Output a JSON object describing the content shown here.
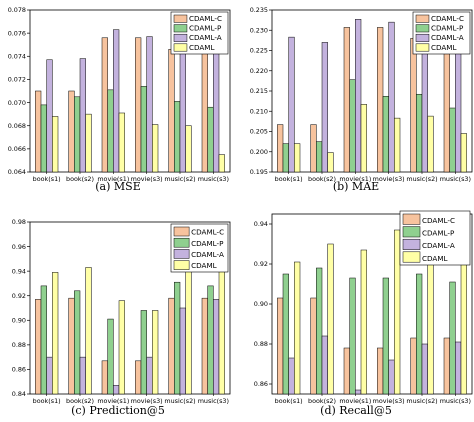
{
  "colors": {
    "CDAML-C": "#f7c39e",
    "CDAML-P": "#8fd08f",
    "CDAML-A": "#c3b2de",
    "CDAML": "#ffffa6",
    "frame": "#000000"
  },
  "chart_data": [
    {
      "type": "bar",
      "caption": "(a)  MSE",
      "categories": [
        "book(s1)",
        "book(s2)",
        "movie(s1)",
        "movie(s3)",
        "music(s2)",
        "music(s3)"
      ],
      "ylim": [
        0.064,
        0.078
      ],
      "yticks": [
        0.064,
        0.066,
        0.068,
        0.07,
        0.072,
        0.074,
        0.076,
        0.078
      ],
      "ytick_labels": [
        "0.064",
        "0.066",
        "0.068",
        "0.070",
        "0.072",
        "0.074",
        "0.076",
        "0.078"
      ],
      "legend_position": "top-right",
      "series": [
        {
          "name": "CDAML-C",
          "values": [
            0.071,
            0.071,
            0.0756,
            0.0756,
            0.0746,
            0.0746
          ]
        },
        {
          "name": "CDAML-P",
          "values": [
            0.0698,
            0.0705,
            0.0711,
            0.0714,
            0.0701,
            0.0696
          ]
        },
        {
          "name": "CDAML-A",
          "values": [
            0.0737,
            0.0738,
            0.0763,
            0.0757,
            0.075,
            0.075
          ]
        },
        {
          "name": "CDAML",
          "values": [
            0.0688,
            0.069,
            0.0691,
            0.0681,
            0.068,
            0.0655
          ]
        }
      ]
    },
    {
      "type": "bar",
      "caption": "(b)  MAE",
      "categories": [
        "book(s1)",
        "book(s2)",
        "movie(s1)",
        "movie(s3)",
        "music(s2)",
        "music(s3)"
      ],
      "ylim": [
        0.195,
        0.235
      ],
      "yticks": [
        0.195,
        0.2,
        0.205,
        0.21,
        0.215,
        0.22,
        0.225,
        0.23,
        0.235
      ],
      "ytick_labels": [
        "0.195",
        "0.200",
        "0.205",
        "0.210",
        "0.215",
        "0.220",
        "0.225",
        "0.230",
        "0.235"
      ],
      "legend_position": "top-right",
      "series": [
        {
          "name": "CDAML-C",
          "values": [
            0.2067,
            0.2067,
            0.2307,
            0.2307,
            0.228,
            0.228
          ]
        },
        {
          "name": "CDAML-P",
          "values": [
            0.202,
            0.2025,
            0.2178,
            0.2137,
            0.2142,
            0.2108
          ]
        },
        {
          "name": "CDAML-A",
          "values": [
            0.2283,
            0.227,
            0.2327,
            0.232,
            0.2293,
            0.2287
          ]
        },
        {
          "name": "CDAML",
          "values": [
            0.202,
            0.1998,
            0.2117,
            0.2083,
            0.2088,
            0.2045
          ]
        }
      ]
    },
    {
      "type": "bar",
      "caption": "(c)  Prediction@5",
      "categories": [
        "book(s1)",
        "book(s2)",
        "movie(s1)",
        "movie(s3)",
        "music(s2)",
        "music(s3)"
      ],
      "ylim": [
        0.84,
        0.98
      ],
      "yticks": [
        0.84,
        0.86,
        0.88,
        0.9,
        0.92,
        0.94,
        0.96,
        0.98
      ],
      "ytick_labels": [
        "0.84",
        "0.86",
        "0.88",
        "0.90",
        "0.92",
        "0.94",
        "0.96",
        "0.98"
      ],
      "legend_position": "top-right",
      "series": [
        {
          "name": "CDAML-C",
          "values": [
            0.917,
            0.918,
            0.867,
            0.867,
            0.918,
            0.918
          ]
        },
        {
          "name": "CDAML-P",
          "values": [
            0.928,
            0.924,
            0.901,
            0.908,
            0.931,
            0.928
          ]
        },
        {
          "name": "CDAML-A",
          "values": [
            0.87,
            0.87,
            0.847,
            0.87,
            0.91,
            0.917
          ]
        },
        {
          "name": "CDAML",
          "values": [
            0.939,
            0.943,
            0.916,
            0.908,
            0.954,
            0.944
          ]
        }
      ]
    },
    {
      "type": "bar",
      "caption": "(d)  Recall@5",
      "categories": [
        "book(s1)",
        "book(s2)",
        "movie(s1)",
        "movie(s3)",
        "music(s2)",
        "music(s3)"
      ],
      "ylim": [
        0.855,
        0.945
      ],
      "yticks": [
        0.86,
        0.88,
        0.9,
        0.92,
        0.94
      ],
      "ytick_labels": [
        "0.86",
        "0.88",
        "0.90",
        "0.92",
        "0.94"
      ],
      "legend_position": "top-right",
      "series": [
        {
          "name": "CDAML-C",
          "values": [
            0.903,
            0.903,
            0.878,
            0.878,
            0.883,
            0.883
          ]
        },
        {
          "name": "CDAML-P",
          "values": [
            0.915,
            0.918,
            0.913,
            0.913,
            0.915,
            0.911
          ]
        },
        {
          "name": "CDAML-A",
          "values": [
            0.873,
            0.884,
            0.857,
            0.872,
            0.88,
            0.881
          ]
        },
        {
          "name": "CDAML",
          "values": [
            0.921,
            0.93,
            0.927,
            0.937,
            0.93,
            0.926
          ]
        }
      ]
    }
  ]
}
